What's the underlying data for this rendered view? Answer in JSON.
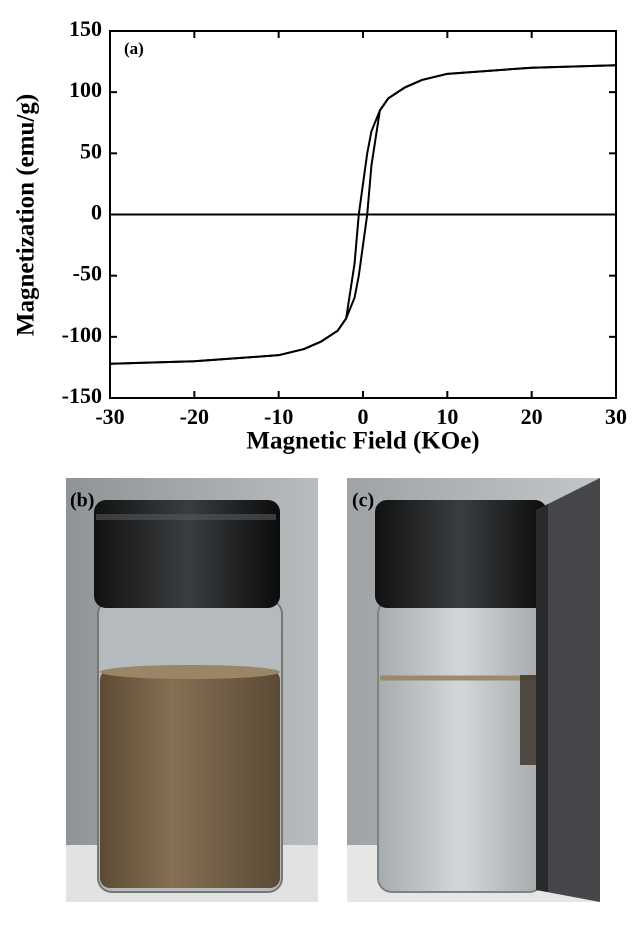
{
  "chart_data": {
    "type": "line",
    "annotation": "(a)",
    "x_label": "Magnetic Field (KOe)",
    "y_label": "Magnetization (emu/g)",
    "x": [
      -30,
      -20,
      -10,
      -7,
      -5,
      -3,
      -2,
      -1,
      -0.5,
      0,
      0.5,
      1,
      2,
      3,
      5,
      7,
      10,
      20,
      30
    ],
    "series": [
      {
        "color": "#000000",
        "values": [
          -122,
          -120,
          -115,
          -110,
          -104,
          -95,
          -85,
          -40,
          0,
          25,
          50,
          68,
          85,
          95,
          104,
          110,
          115,
          120,
          122
        ]
      },
      {
        "color": "#000000",
        "values": [
          -122,
          -120,
          -115,
          -110,
          -104,
          -95,
          -85,
          -68,
          -50,
          -25,
          0,
          40,
          85,
          95,
          104,
          110,
          115,
          120,
          122
        ]
      }
    ],
    "xlim": [
      -30,
      30
    ],
    "xticks": [
      -30,
      -20,
      -10,
      0,
      10,
      20,
      30
    ],
    "ylim": [
      -150,
      150
    ],
    "yticks": [
      -150,
      -100,
      -50,
      0,
      50,
      100,
      150
    ],
    "zero_line": true
  },
  "photos": {
    "labels": [
      "(b)",
      "(c)"
    ]
  }
}
